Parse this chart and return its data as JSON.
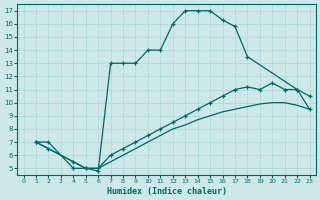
{
  "xlabel": "Humidex (Indice chaleur)",
  "bg_color": "#cce8e8",
  "line_color": "#006666",
  "grid_color": "#b0d4d4",
  "xlim": [
    -0.5,
    23.5
  ],
  "ylim": [
    4.5,
    17.5
  ],
  "xticks": [
    0,
    1,
    2,
    3,
    4,
    5,
    6,
    7,
    8,
    9,
    10,
    11,
    12,
    13,
    14,
    15,
    16,
    17,
    18,
    19,
    20,
    21,
    22,
    23
  ],
  "yticks": [
    5,
    6,
    7,
    8,
    9,
    10,
    11,
    12,
    13,
    14,
    15,
    16,
    17
  ],
  "line1_x": [
    1,
    2,
    4,
    5,
    6,
    7,
    8,
    9,
    10,
    11,
    12,
    13,
    14,
    15,
    16,
    17,
    18,
    22,
    23
  ],
  "line1_y": [
    7,
    7,
    5,
    5,
    4.8,
    13,
    13,
    13,
    14,
    14,
    16,
    17,
    17,
    17,
    16.3,
    15.8,
    13.5,
    11,
    10.5
  ],
  "line2_x": [
    1,
    2,
    4,
    5,
    6,
    7,
    8,
    9,
    10,
    11,
    12,
    13,
    14,
    15,
    16,
    17,
    18,
    19,
    20,
    21,
    22,
    23
  ],
  "line2_y": [
    7,
    6.5,
    5.5,
    5,
    5,
    6,
    6.5,
    7,
    7.5,
    8,
    8.5,
    9,
    9.5,
    10,
    10.5,
    11,
    11.2,
    11,
    11.5,
    11,
    11,
    9.5
  ],
  "line3_x": [
    1,
    2,
    4,
    5,
    6,
    7,
    8,
    9,
    10,
    11,
    12,
    13,
    14,
    15,
    16,
    17,
    18,
    19,
    20,
    21,
    22,
    23
  ],
  "line3_y": [
    7,
    6.5,
    5.5,
    5,
    5,
    5.5,
    6,
    6.5,
    7,
    7.5,
    8,
    8.3,
    8.7,
    9,
    9.3,
    9.5,
    9.7,
    9.9,
    10,
    10,
    9.8,
    9.5
  ]
}
